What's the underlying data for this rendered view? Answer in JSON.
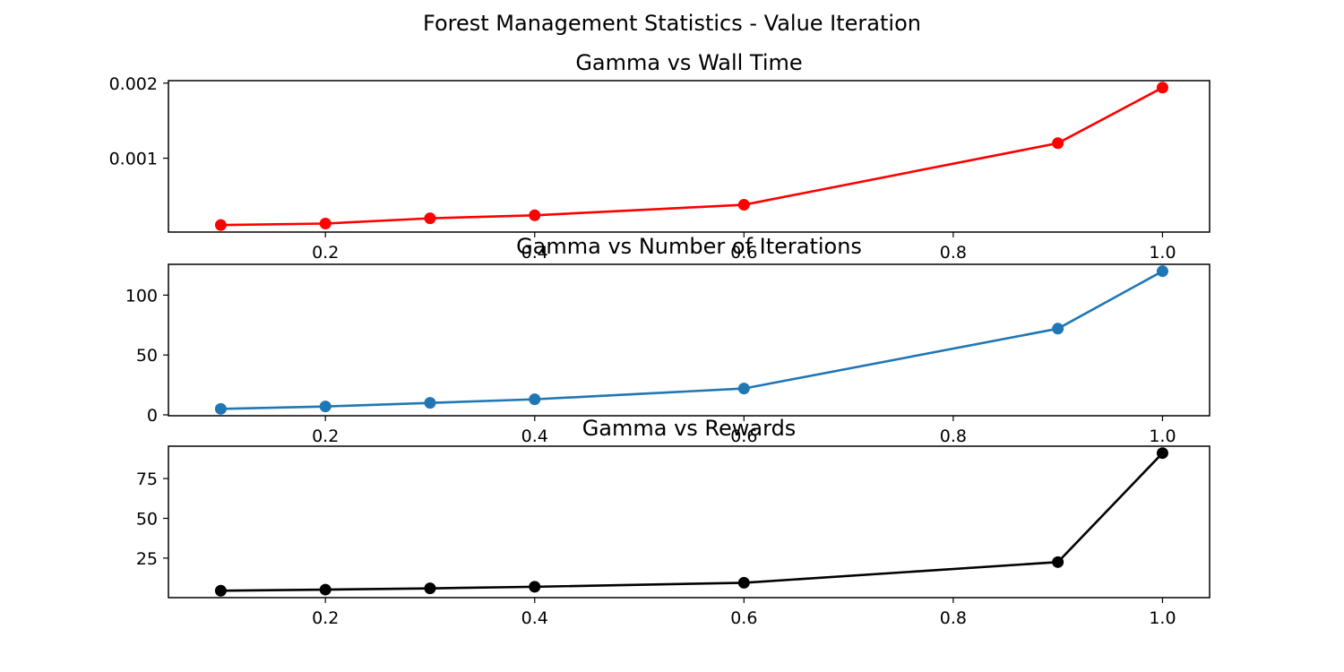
{
  "figure": {
    "suptitle": "Forest Management Statistics - Value Iteration"
  },
  "chart_data": [
    {
      "type": "line",
      "title": "Gamma vs Wall Time",
      "xlabel": "",
      "ylabel": "",
      "x": [
        0.1,
        0.2,
        0.3,
        0.4,
        0.6,
        0.9,
        1.0
      ],
      "series": [
        {
          "values": [
            0.00011,
            0.00013,
            0.0002,
            0.00024,
            0.00038,
            0.0012,
            0.00194
          ],
          "color": "#ff0000"
        }
      ],
      "xlim": [
        0.05,
        1.045
      ],
      "ylim": [
        1.65e-05,
        0.002033
      ],
      "xticks": [
        0.2,
        0.4,
        0.6,
        0.8,
        1.0
      ],
      "xtick_labels": [
        "0.2",
        "0.4",
        "0.6",
        "0.8",
        "1.0"
      ],
      "yticks": [
        0.001,
        0.002
      ],
      "ytick_labels": [
        "0.001",
        "0.002"
      ],
      "marker": "circle",
      "grid": false,
      "legend": false
    },
    {
      "type": "line",
      "title": "Gamma vs Number of Iterations",
      "xlabel": "",
      "ylabel": "",
      "x": [
        0.1,
        0.2,
        0.3,
        0.4,
        0.6,
        0.9,
        1.0
      ],
      "series": [
        {
          "values": [
            5,
            7,
            10,
            13,
            22,
            72,
            120
          ],
          "color": "#1f77b4"
        }
      ],
      "xlim": [
        0.05,
        1.045
      ],
      "ylim": [
        -0.75,
        125.75
      ],
      "xticks": [
        0.2,
        0.4,
        0.6,
        0.8,
        1.0
      ],
      "xtick_labels": [
        "0.2",
        "0.4",
        "0.6",
        "0.8",
        "1.0"
      ],
      "yticks": [
        0,
        50,
        100
      ],
      "ytick_labels": [
        "0",
        "50",
        "100"
      ],
      "marker": "circle",
      "grid": false,
      "legend": false
    },
    {
      "type": "line",
      "title": "Gamma vs Rewards",
      "xlabel": "",
      "ylabel": "",
      "x": [
        0.1,
        0.2,
        0.3,
        0.4,
        0.6,
        0.9,
        1.0
      ],
      "series": [
        {
          "values": [
            4.5,
            5.2,
            6.0,
            7.0,
            9.5,
            22.5,
            91.0
          ],
          "color": "#000000"
        }
      ],
      "xlim": [
        0.05,
        1.045
      ],
      "ylim": [
        0.17,
        95.33
      ],
      "xticks": [
        0.2,
        0.4,
        0.6,
        0.8,
        1.0
      ],
      "xtick_labels": [
        "0.2",
        "0.4",
        "0.6",
        "0.8",
        "1.0"
      ],
      "yticks": [
        25,
        50,
        75
      ],
      "ytick_labels": [
        "25",
        "50",
        "75"
      ],
      "marker": "circle",
      "grid": false,
      "legend": false
    }
  ]
}
